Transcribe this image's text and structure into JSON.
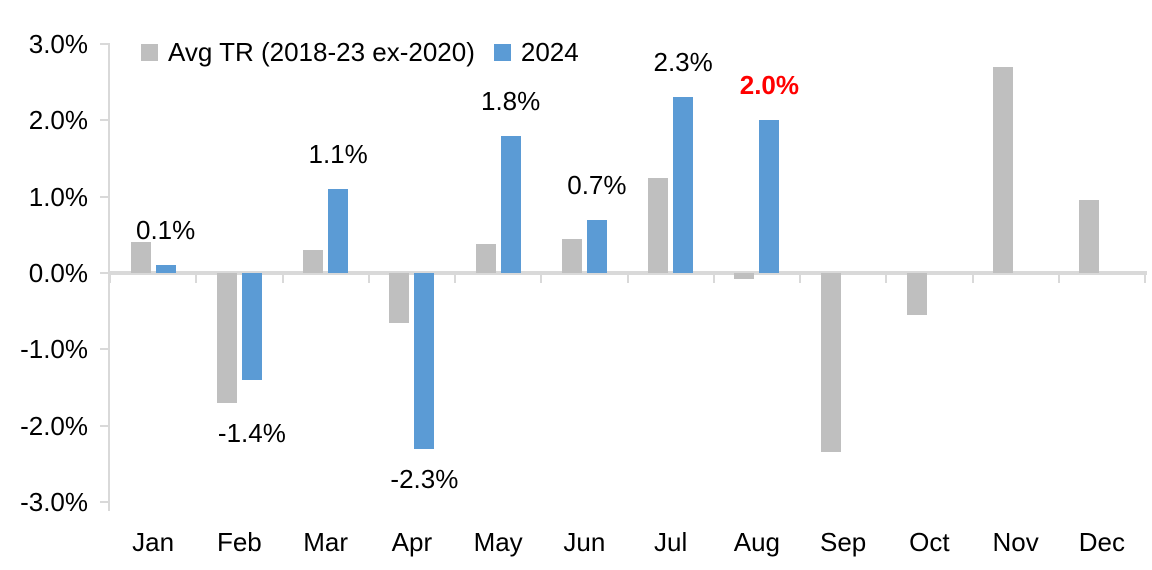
{
  "chart_data": {
    "type": "bar",
    "title": "",
    "xlabel": "",
    "ylabel": "",
    "categories": [
      "Jan",
      "Feb",
      "Mar",
      "Apr",
      "May",
      "Jun",
      "Jul",
      "Aug",
      "Sep",
      "Oct",
      "Nov",
      "Dec"
    ],
    "series": [
      {
        "name": "Avg TR (2018-23 ex-2020)",
        "color": "#BFBFBF",
        "values": [
          0.4,
          -1.7,
          0.3,
          -0.65,
          0.38,
          0.45,
          1.25,
          -0.08,
          -2.35,
          -0.55,
          2.7,
          0.95
        ]
      },
      {
        "name": "2024",
        "color": "#5B9BD5",
        "values": [
          0.1,
          -1.4,
          1.1,
          -2.3,
          1.8,
          0.7,
          2.3,
          2.0,
          null,
          null,
          null,
          null
        ]
      }
    ],
    "data_labels": [
      {
        "month_index": 0,
        "text": "0.1%",
        "color": "#000000",
        "bold": false
      },
      {
        "month_index": 1,
        "text": "-1.4%",
        "color": "#000000",
        "bold": false
      },
      {
        "month_index": 2,
        "text": "1.1%",
        "color": "#000000",
        "bold": false
      },
      {
        "month_index": 3,
        "text": "-2.3%",
        "color": "#000000",
        "bold": false
      },
      {
        "month_index": 4,
        "text": "1.8%",
        "color": "#000000",
        "bold": false
      },
      {
        "month_index": 5,
        "text": "0.7%",
        "color": "#000000",
        "bold": false
      },
      {
        "month_index": 6,
        "text": "2.3%",
        "color": "#000000",
        "bold": false
      },
      {
        "month_index": 7,
        "text": "2.0%",
        "color": "#FF0000",
        "bold": true
      }
    ],
    "yticks": [
      3.0,
      2.0,
      1.0,
      0.0,
      -1.0,
      -2.0,
      -3.0
    ],
    "ytick_labels": [
      "3.0%",
      "2.0%",
      "1.0%",
      "0.0%",
      "-1.0%",
      "-2.0%",
      "-3.0%"
    ],
    "ylim": [
      -3.0,
      3.0
    ],
    "grid": false,
    "legend_position": "top",
    "colors": {
      "axis": "#D9D9D9",
      "text": "#000000",
      "highlight": "#FF0000",
      "background": "#FFFFFF"
    }
  }
}
